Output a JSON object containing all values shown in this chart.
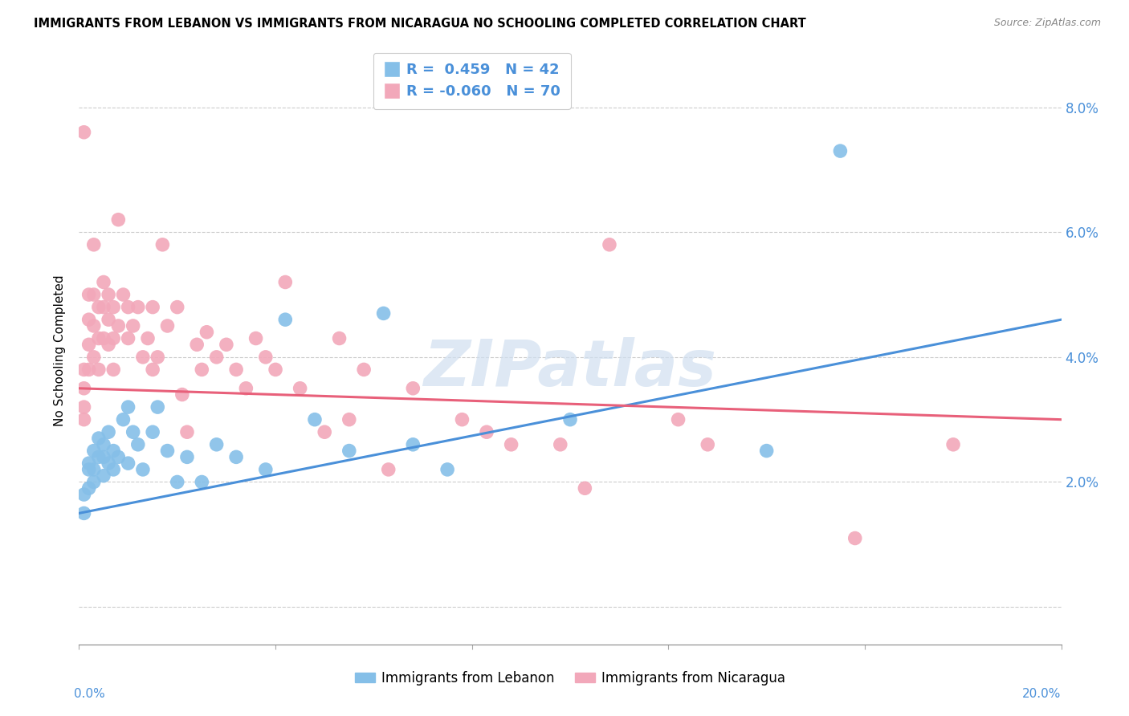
{
  "title": "IMMIGRANTS FROM LEBANON VS IMMIGRANTS FROM NICARAGUA NO SCHOOLING COMPLETED CORRELATION CHART",
  "source": "Source: ZipAtlas.com",
  "ylabel": "No Schooling Completed",
  "xlim": [
    0.0,
    0.2
  ],
  "ylim": [
    -0.006,
    0.088
  ],
  "yticks": [
    0.0,
    0.02,
    0.04,
    0.06,
    0.08
  ],
  "ytick_labels": [
    "",
    "2.0%",
    "4.0%",
    "6.0%",
    "8.0%"
  ],
  "r_lebanon": 0.459,
  "n_lebanon": 42,
  "r_nicaragua": -0.06,
  "n_nicaragua": 70,
  "color_lebanon": "#85bfe8",
  "color_nicaragua": "#f2a8ba",
  "line_color_lebanon": "#4a90d9",
  "line_color_nicaragua": "#e8607a",
  "watermark": "ZIPatlas",
  "lebanon_x": [
    0.001,
    0.001,
    0.002,
    0.002,
    0.002,
    0.003,
    0.003,
    0.003,
    0.004,
    0.004,
    0.005,
    0.005,
    0.005,
    0.006,
    0.006,
    0.007,
    0.007,
    0.008,
    0.009,
    0.01,
    0.01,
    0.011,
    0.012,
    0.013,
    0.015,
    0.016,
    0.018,
    0.02,
    0.022,
    0.025,
    0.028,
    0.032,
    0.038,
    0.042,
    0.048,
    0.055,
    0.062,
    0.068,
    0.075,
    0.1,
    0.14,
    0.155
  ],
  "lebanon_y": [
    0.018,
    0.015,
    0.022,
    0.019,
    0.023,
    0.02,
    0.022,
    0.025,
    0.024,
    0.027,
    0.021,
    0.024,
    0.026,
    0.023,
    0.028,
    0.022,
    0.025,
    0.024,
    0.03,
    0.032,
    0.023,
    0.028,
    0.026,
    0.022,
    0.028,
    0.032,
    0.025,
    0.02,
    0.024,
    0.02,
    0.026,
    0.024,
    0.022,
    0.046,
    0.03,
    0.025,
    0.047,
    0.026,
    0.022,
    0.03,
    0.025,
    0.073
  ],
  "nicaragua_x": [
    0.001,
    0.001,
    0.001,
    0.001,
    0.001,
    0.002,
    0.002,
    0.002,
    0.002,
    0.003,
    0.003,
    0.003,
    0.003,
    0.004,
    0.004,
    0.004,
    0.005,
    0.005,
    0.005,
    0.006,
    0.006,
    0.006,
    0.007,
    0.007,
    0.007,
    0.008,
    0.008,
    0.009,
    0.01,
    0.01,
    0.011,
    0.012,
    0.013,
    0.014,
    0.015,
    0.015,
    0.016,
    0.017,
    0.018,
    0.02,
    0.021,
    0.022,
    0.024,
    0.025,
    0.026,
    0.028,
    0.03,
    0.032,
    0.034,
    0.036,
    0.038,
    0.04,
    0.042,
    0.045,
    0.05,
    0.053,
    0.055,
    0.058,
    0.063,
    0.068,
    0.078,
    0.083,
    0.088,
    0.098,
    0.103,
    0.108,
    0.122,
    0.128,
    0.158,
    0.178
  ],
  "nicaragua_y": [
    0.076,
    0.038,
    0.035,
    0.032,
    0.03,
    0.05,
    0.046,
    0.042,
    0.038,
    0.058,
    0.05,
    0.045,
    0.04,
    0.048,
    0.043,
    0.038,
    0.052,
    0.048,
    0.043,
    0.05,
    0.046,
    0.042,
    0.048,
    0.043,
    0.038,
    0.062,
    0.045,
    0.05,
    0.048,
    0.043,
    0.045,
    0.048,
    0.04,
    0.043,
    0.048,
    0.038,
    0.04,
    0.058,
    0.045,
    0.048,
    0.034,
    0.028,
    0.042,
    0.038,
    0.044,
    0.04,
    0.042,
    0.038,
    0.035,
    0.043,
    0.04,
    0.038,
    0.052,
    0.035,
    0.028,
    0.043,
    0.03,
    0.038,
    0.022,
    0.035,
    0.03,
    0.028,
    0.026,
    0.026,
    0.019,
    0.058,
    0.03,
    0.026,
    0.011,
    0.026
  ]
}
